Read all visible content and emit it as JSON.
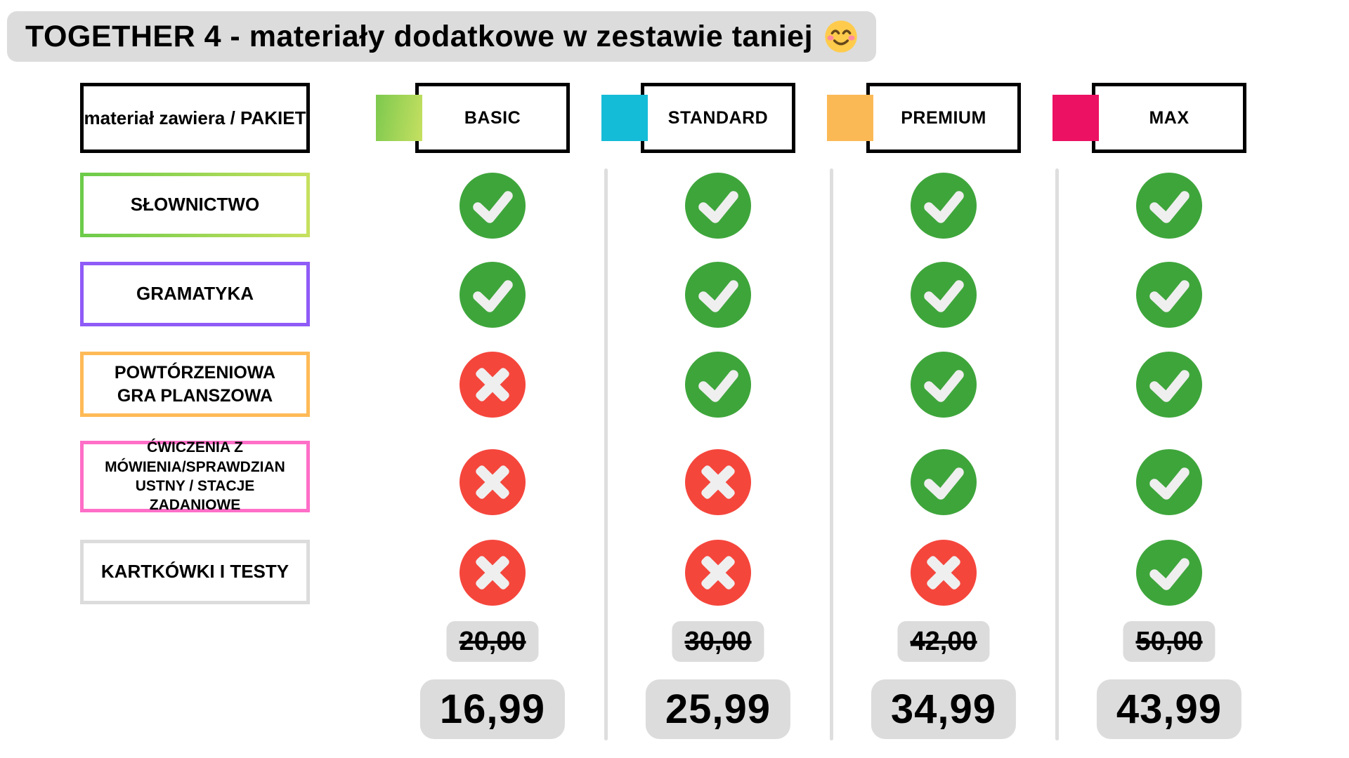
{
  "title": {
    "text": "TOGETHER 4 - materiały dodatkowe w zestawie taniej",
    "emoji_char": "😊"
  },
  "colors": {
    "check_green": "#3ea53b",
    "cross_red": "#f5463c",
    "mark_glyph": "#efefef",
    "pill_gray": "#dcdcdc",
    "divider_gray": "#dedede",
    "border_black": "#000000"
  },
  "table": {
    "corner_label": "materiał zawiera / PAKIET",
    "packages": [
      {
        "name": "BASIC",
        "swatch": "linear-gradient(100deg, #7cc94e, #c6e061)"
      },
      {
        "name": "STANDARD",
        "swatch": "#15bcd7"
      },
      {
        "name": "PREMIUM",
        "swatch": "#fbb956"
      },
      {
        "name": "MAX",
        "swatch": "#ec1162"
      }
    ],
    "rows": [
      {
        "lines": [
          "SŁOWNICTWO"
        ],
        "border_image": "linear-gradient(90deg, #6dcb4a, #c6e05f) 1",
        "values": [
          true,
          true,
          true,
          true
        ]
      },
      {
        "lines": [
          "GRAMATYKA"
        ],
        "border_image": "linear-gradient(#8f5bf7, #8f5bf7) 1",
        "values": [
          true,
          true,
          true,
          true
        ]
      },
      {
        "lines": [
          "POWTÓRZENIOWA",
          "GRA PLANSZOWA"
        ],
        "border_image": "linear-gradient(#ffba57, #ffba57) 1",
        "values": [
          false,
          true,
          true,
          true
        ]
      },
      {
        "lines": [
          "ĆWICZENIA Z",
          "MÓWIENIA/SPRAWDZIAN",
          "USTNY / STACJE ZADANIOWE"
        ],
        "border_image": "linear-gradient(#ff6ec7, #ff6ec7) 1",
        "values": [
          false,
          false,
          true,
          true
        ]
      },
      {
        "lines": [
          "KARTKÓWKI I TESTY"
        ],
        "border_image": "linear-gradient(#dcdcdc, #dcdcdc) 1",
        "values": [
          false,
          false,
          false,
          true
        ]
      }
    ],
    "columns": [
      {
        "old_price": "20,00",
        "new_price": "16,99"
      },
      {
        "old_price": "30,00",
        "new_price": "25,99"
      },
      {
        "old_price": "42,00",
        "new_price": "34,99"
      },
      {
        "old_price": "50,00",
        "new_price": "43,99"
      }
    ]
  },
  "chart_data": {
    "type": "table",
    "title": "TOGETHER 4 - materiały dodatkowe w zestawie taniej",
    "columns": [
      "BASIC",
      "STANDARD",
      "PREMIUM",
      "MAX"
    ],
    "rows": [
      "SŁOWNICTWO",
      "GRAMATYKA",
      "POWTÓRZENIOWA GRA PLANSZOWA",
      "ĆWICZENIA Z MÓWIENIA/SPRAWDZIAN USTNY / STACJE ZADANIOWE",
      "KARTKÓWKI I TESTY"
    ],
    "included": [
      [
        true,
        true,
        true,
        true
      ],
      [
        true,
        true,
        true,
        true
      ],
      [
        false,
        true,
        true,
        true
      ],
      [
        false,
        false,
        true,
        true
      ],
      [
        false,
        false,
        false,
        true
      ]
    ],
    "old_prices": [
      20.0,
      30.0,
      42.0,
      50.0
    ],
    "new_prices": [
      16.99,
      25.99,
      34.99,
      43.99
    ]
  }
}
